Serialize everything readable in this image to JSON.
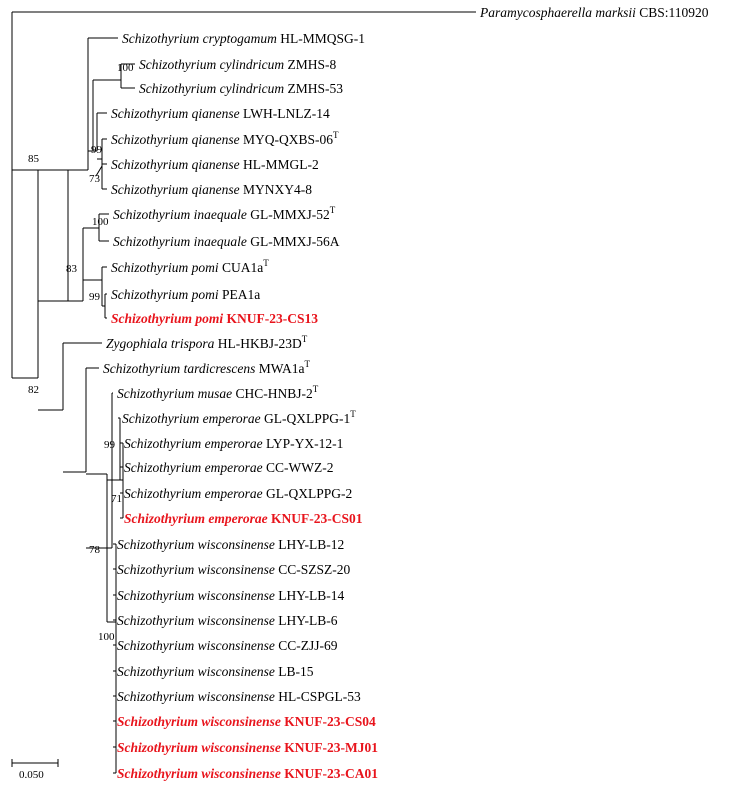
{
  "colors": {
    "line": "#000000",
    "highlight": "#e8141c"
  },
  "tree": {
    "scale_bar_label": "0.050",
    "taxa": [
      {
        "species": "Paramycosphaerella marksii",
        "strain": "CBS:110920",
        "type_strain": false,
        "highlight": false
      },
      {
        "species": "Schizothyrium cryptogamum",
        "strain": "HL-MMQSG-1",
        "type_strain": false,
        "highlight": false
      },
      {
        "species": "Schizothyrium cylindricum",
        "strain": "ZMHS-8",
        "type_strain": false,
        "highlight": false
      },
      {
        "species": "Schizothyrium cylindricum",
        "strain": "ZMHS-53",
        "type_strain": false,
        "highlight": false
      },
      {
        "species": "Schizothyrium qianense",
        "strain": "LWH-LNLZ-14",
        "type_strain": false,
        "highlight": false
      },
      {
        "species": "Schizothyrium qianense",
        "strain": "MYQ-QXBS-06",
        "type_strain": true,
        "highlight": false
      },
      {
        "species": "Schizothyrium qianense",
        "strain": "HL-MMGL-2",
        "type_strain": false,
        "highlight": false
      },
      {
        "species": "Schizothyrium qianense",
        "strain": "MYNXY4-8",
        "type_strain": false,
        "highlight": false
      },
      {
        "species": "Schizothyrium inaequale",
        "strain": "GL-MMXJ-52",
        "type_strain": true,
        "highlight": false
      },
      {
        "species": "Schizothyrium inaequale",
        "strain": "GL-MMXJ-56A",
        "type_strain": false,
        "highlight": false
      },
      {
        "species": "Schizothyrium pomi",
        "strain": "CUA1a",
        "type_strain": true,
        "highlight": false
      },
      {
        "species": "Schizothyrium pomi",
        "strain": "PEA1a",
        "type_strain": false,
        "highlight": false
      },
      {
        "species": "Schizothyrium pomi",
        "strain": "KNUF-23-CS13",
        "type_strain": false,
        "highlight": true
      },
      {
        "species": "Zygophiala trispora",
        "strain": "HL-HKBJ-23D",
        "type_strain": true,
        "highlight": false
      },
      {
        "species": "Schizothyrium tardicrescens",
        "strain": "MWA1a",
        "type_strain": true,
        "highlight": false
      },
      {
        "species": "Schizothyrium musae",
        "strain": "CHC-HNBJ-2",
        "type_strain": true,
        "highlight": false
      },
      {
        "species": "Schizothyrium emperorae",
        "strain": "GL-QXLPPG-1",
        "type_strain": true,
        "highlight": false
      },
      {
        "species": "Schizothyrium emperorae",
        "strain": "LYP-YX-12-1",
        "type_strain": false,
        "highlight": false
      },
      {
        "species": "Schizothyrium emperorae",
        "strain": "CC-WWZ-2",
        "type_strain": false,
        "highlight": false
      },
      {
        "species": "Schizothyrium emperorae",
        "strain": "GL-QXLPPG-2",
        "type_strain": false,
        "highlight": false
      },
      {
        "species": "Schizothyrium emperorae",
        "strain": "KNUF-23-CS01",
        "type_strain": false,
        "highlight": true
      },
      {
        "species": "Schizothyrium wisconsinense",
        "strain": "LHY-LB-12",
        "type_strain": false,
        "highlight": false
      },
      {
        "species": "Schizothyrium wisconsinense",
        "strain": "CC-SZSZ-20",
        "type_strain": false,
        "highlight": false
      },
      {
        "species": "Schizothyrium wisconsinense",
        "strain": "LHY-LB-14",
        "type_strain": false,
        "highlight": false
      },
      {
        "species": "Schizothyrium wisconsinense",
        "strain": "LHY-LB-6",
        "type_strain": false,
        "highlight": false
      },
      {
        "species": "Schizothyrium wisconsinense",
        "strain": "CC-ZJJ-69",
        "type_strain": false,
        "highlight": false
      },
      {
        "species": "Schizothyrium wisconsinense",
        "strain": "LB-15",
        "type_strain": false,
        "highlight": false
      },
      {
        "species": "Schizothyrium wisconsinense",
        "strain": "HL-CSPGL-53",
        "type_strain": false,
        "highlight": false
      },
      {
        "species": "Schizothyrium wisconsinense",
        "strain": "KNUF-23-CS04",
        "type_strain": false,
        "highlight": true
      },
      {
        "species": "Schizothyrium wisconsinense",
        "strain": "KNUF-23-MJ01",
        "type_strain": false,
        "highlight": true
      },
      {
        "species": "Schizothyrium wisconsinense",
        "strain": "KNUF-23-CA01",
        "type_strain": false,
        "highlight": true
      }
    ],
    "bootstrap": {
      "root_ingroup": "85",
      "cylindricum": "100",
      "qianense": "99",
      "qianense_sub": "73",
      "inaequale": "100",
      "pomi_group": "83",
      "pomi": "99",
      "second_clade": "82",
      "emperorae": "99",
      "emperorae_sub": "71",
      "emp_wis": "78",
      "wisconsinense": "100"
    }
  }
}
